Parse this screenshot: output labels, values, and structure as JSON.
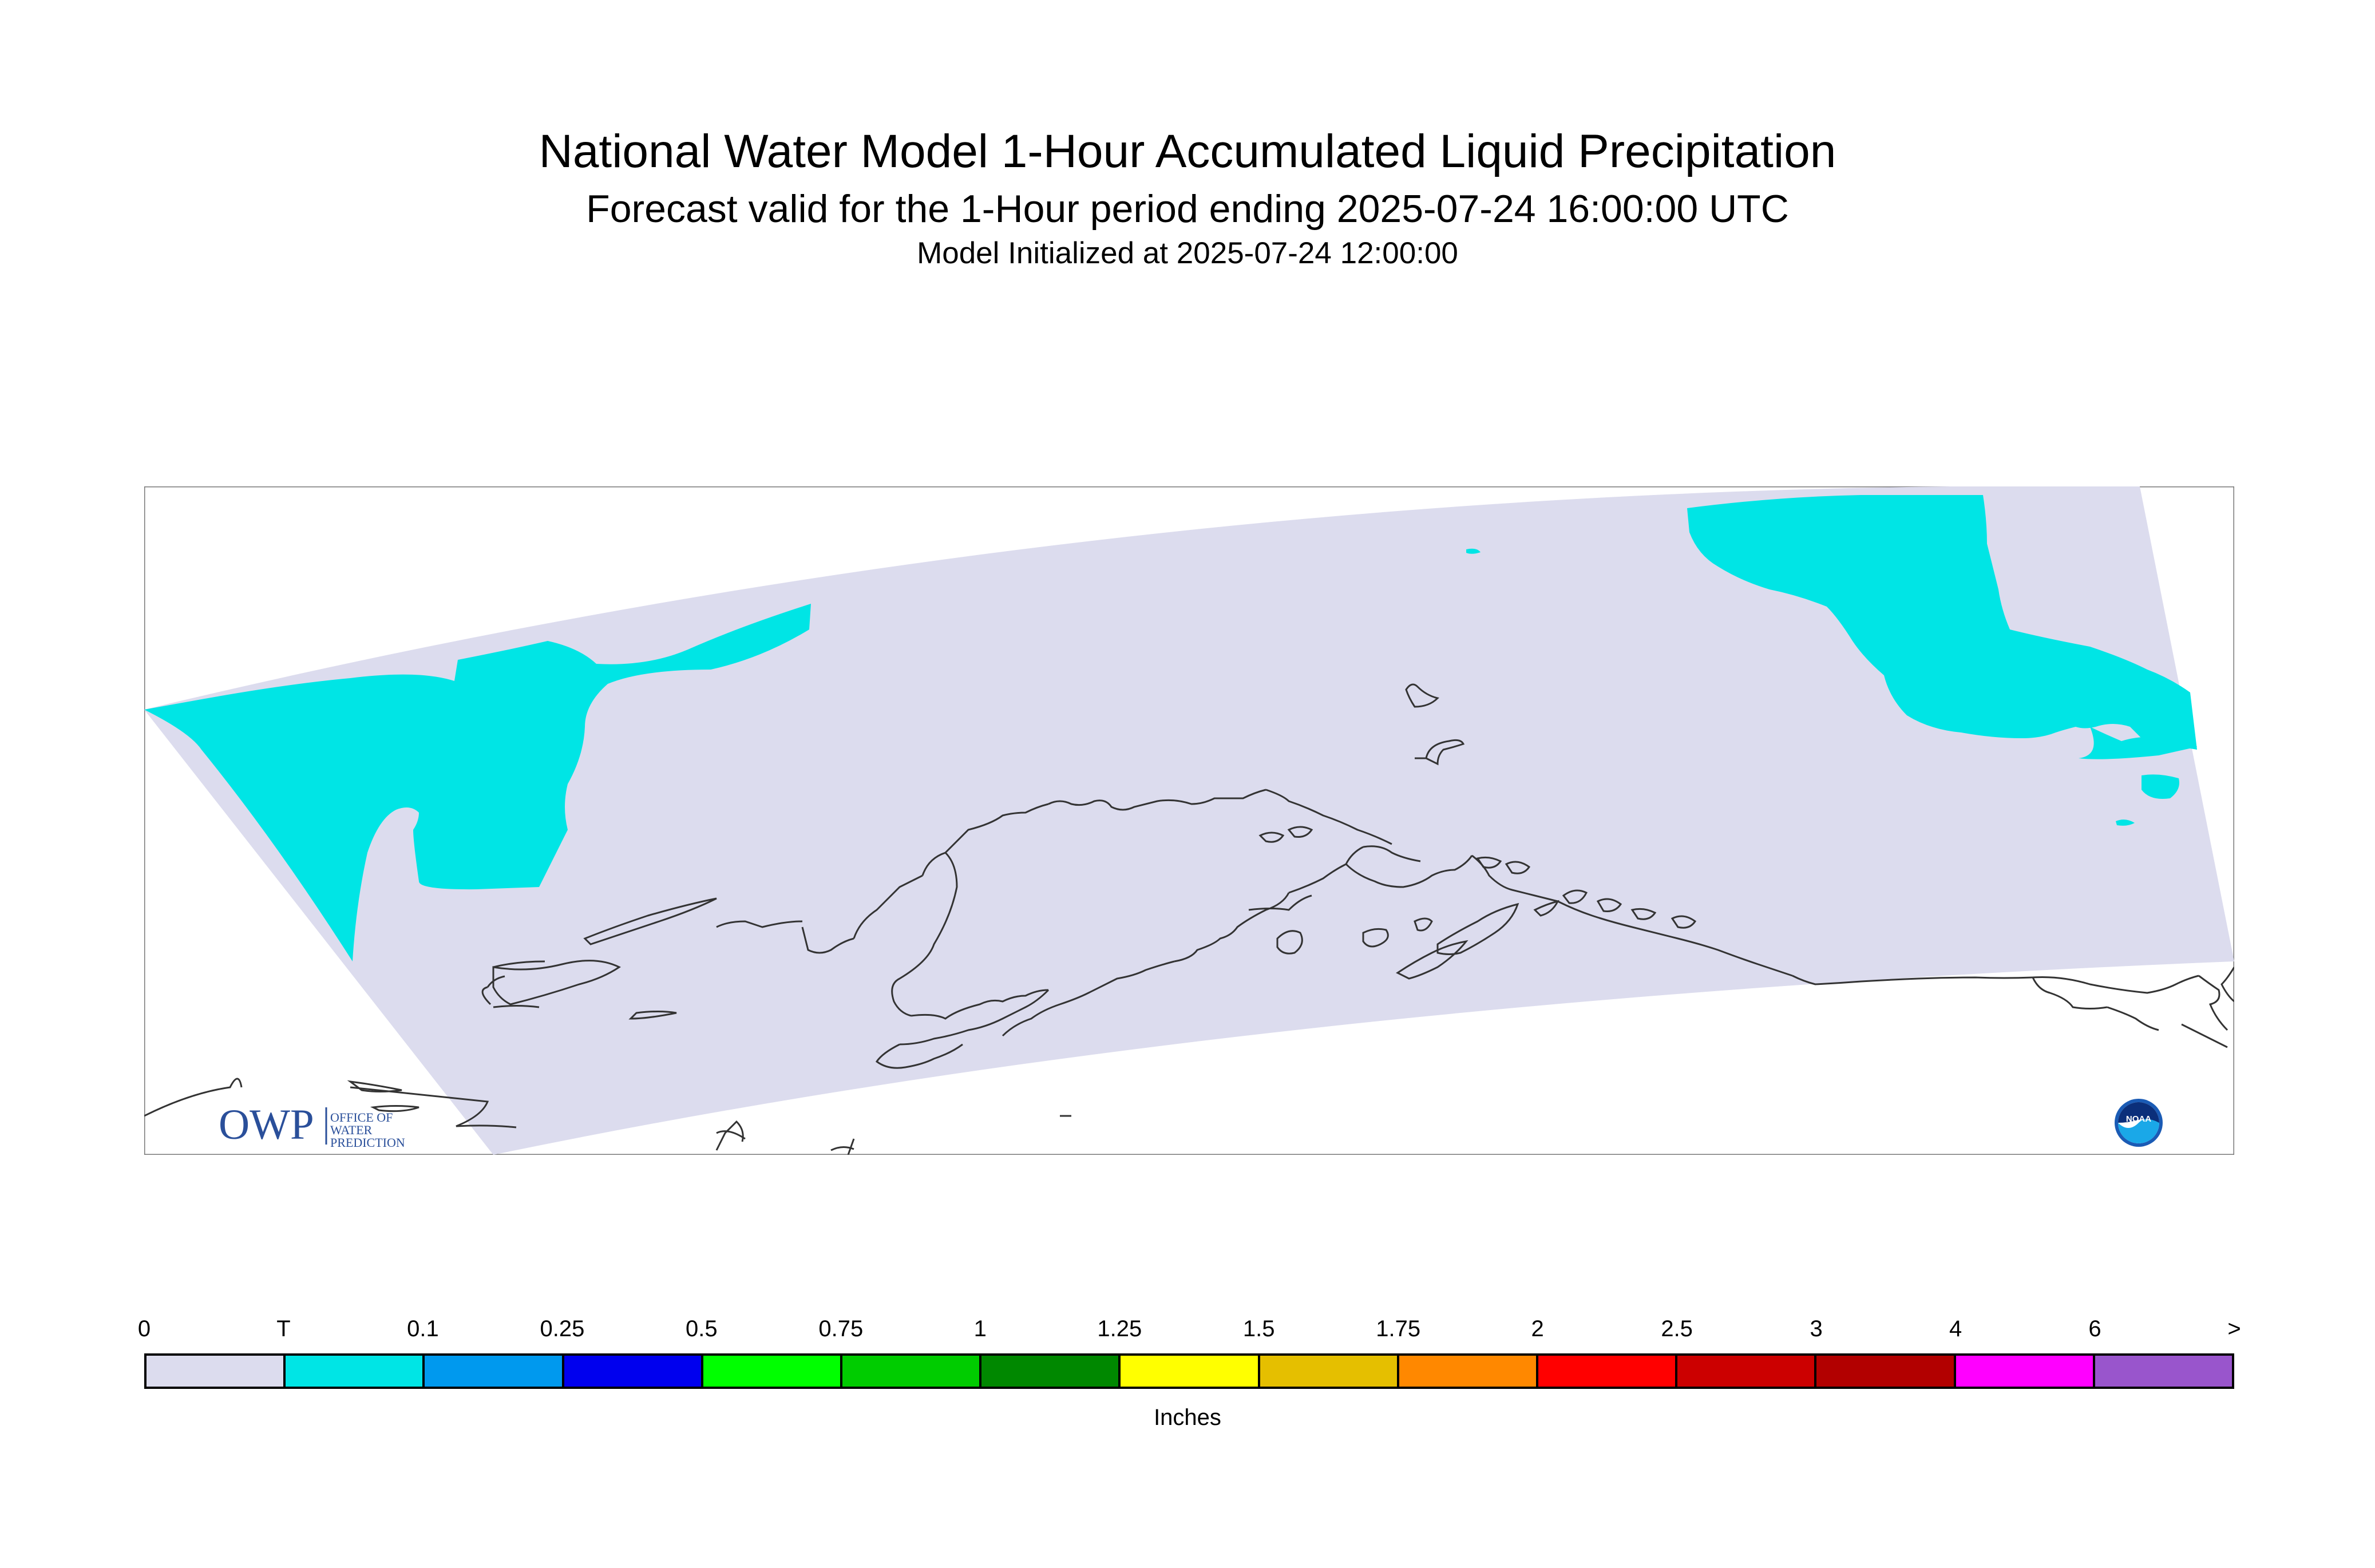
{
  "title": {
    "main": "National Water Model 1-Hour Accumulated Liquid Precipitation",
    "sub": "Forecast valid for the 1-Hour period ending 2025-07-24 16:00:00 UTC",
    "init": "Model Initialized at 2025-07-24 12:00:00"
  },
  "logos": {
    "owp_mark": "OWP",
    "owp_text": [
      "OFFICE OF",
      "WATER",
      "PREDICTION"
    ],
    "noaa_text": "NOAA"
  },
  "map": {
    "region": "Alaska",
    "domain_fill": "#dcdcee",
    "trace_precip_color": "#00e5e5",
    "coastline_color": "#333333",
    "precip_field": "trace (T) precipitation in northwest and northeast parts of domain; 0 elsewhere"
  },
  "colorbar": {
    "unit_label": "Inches",
    "tick_labels": [
      "0",
      "T",
      "0.1",
      "0.25",
      "0.5",
      "0.75",
      "1",
      "1.25",
      "1.5",
      "1.75",
      "2",
      "2.5",
      "3",
      "4",
      "6",
      ">"
    ],
    "colors": [
      "#dcdcee",
      "#00e5e5",
      "#0099ee",
      "#0000ee",
      "#00ff00",
      "#00cc00",
      "#008800",
      "#ffff00",
      "#e5bf00",
      "#ff8800",
      "#ff0000",
      "#cc0000",
      "#b20000",
      "#ff00ff",
      "#9955cc"
    ]
  }
}
